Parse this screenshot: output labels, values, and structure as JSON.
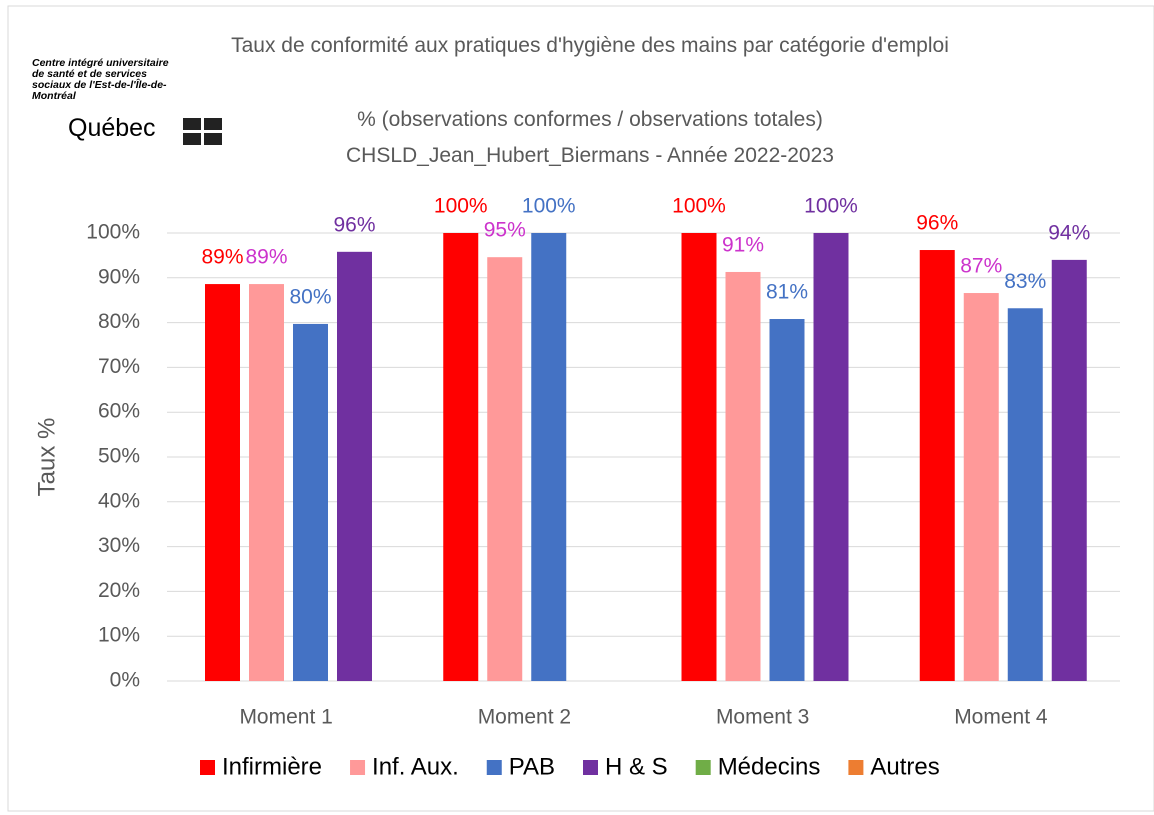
{
  "logo": {
    "text": "Centre intégré universitaire de santé et de services sociaux de l'Est-de-l'Île-de-Montréal",
    "name": "Québec"
  },
  "chart_data": {
    "type": "bar",
    "title": "Taux de conformité aux pratiques d'hygiène des mains par catégorie d'emploi",
    "subtitle": [
      "% (observations conformes / observations totales)",
      "CHSLD_Jean_Hubert_Biermans - Année 2022-2023"
    ],
    "y_label": "Taux %",
    "categories": [
      "Moment 1",
      "Moment 2",
      "Moment 3",
      "Moment 4"
    ],
    "series": [
      {
        "name": "Infirmière",
        "color": "#ff0000",
        "label_color": "#ff0000",
        "values": [
          88.6,
          100,
          100,
          96.2
        ],
        "value_labels": [
          "89%",
          "100%",
          "100%",
          "96%"
        ]
      },
      {
        "name": "Inf. Aux.",
        "color": "#ff9999",
        "label_color": "#cc33cc",
        "values": [
          88.6,
          94.6,
          91.3,
          86.6
        ],
        "value_labels": [
          "89%",
          "95%",
          "91%",
          "87%"
        ]
      },
      {
        "name": "PAB",
        "color": "#4472c4",
        "label_color": "#4472c4",
        "values": [
          79.7,
          100,
          80.8,
          83.2
        ],
        "value_labels": [
          "80%",
          "100%",
          "81%",
          "83%"
        ]
      },
      {
        "name": "H & S",
        "color": "#7030a0",
        "label_color": "#7030a0",
        "values": [
          95.8,
          null,
          100,
          94
        ],
        "value_labels": [
          "96%",
          null,
          "100%",
          "94%"
        ]
      },
      {
        "name": "Médecins",
        "color": "#70ad47",
        "label_color": "#70ad47",
        "values": [
          null,
          null,
          null,
          null
        ],
        "value_labels": [
          null,
          null,
          null,
          null
        ]
      },
      {
        "name": "Autres",
        "color": "#ed7d31",
        "label_color": "#ed7d31",
        "values": [
          null,
          null,
          null,
          null
        ],
        "value_labels": [
          null,
          null,
          null,
          null
        ]
      }
    ],
    "ylim": [
      0,
      100
    ],
    "yticks": [
      {
        "value": 0,
        "label": "0%"
      },
      {
        "value": 10,
        "label": "10%"
      },
      {
        "value": 20,
        "label": "20%"
      },
      {
        "value": 30,
        "label": "30%"
      },
      {
        "value": 40,
        "label": "40%"
      },
      {
        "value": 50,
        "label": "50%"
      },
      {
        "value": 60,
        "label": "60%"
      },
      {
        "value": 70,
        "label": "70%"
      },
      {
        "value": 80,
        "label": "80%"
      },
      {
        "value": 90,
        "label": "90%"
      },
      {
        "value": 100,
        "label": "100%"
      }
    ],
    "grid": true,
    "legend": "bottom"
  }
}
